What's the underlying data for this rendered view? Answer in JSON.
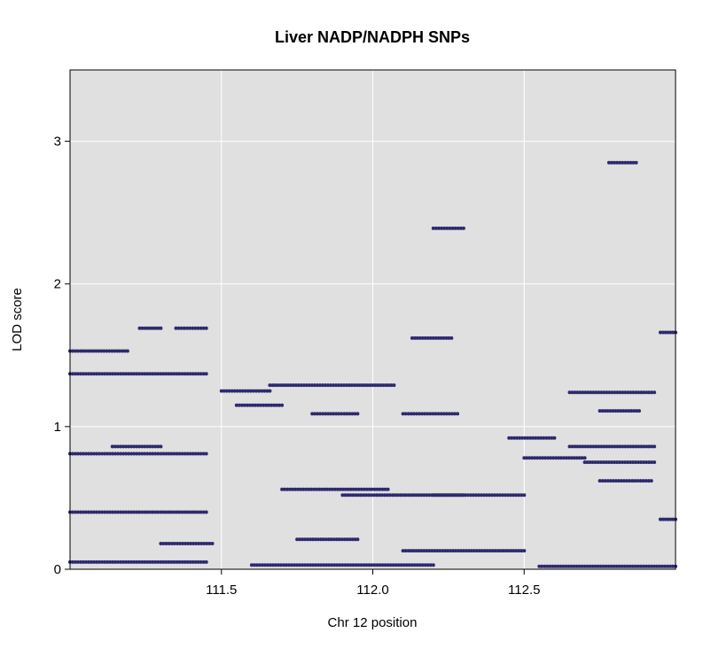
{
  "chart_data": {
    "type": "scatter",
    "title": "Liver NADP/NADPH SNPs",
    "xlabel": "Chr 12 position",
    "ylabel": "LOD score",
    "xlim": [
      111.0,
      113.0
    ],
    "ylim": [
      0,
      3.5
    ],
    "x_ticks": [
      111.5,
      112.0,
      112.5
    ],
    "x_tick_labels": [
      "111.5",
      "112.0",
      "112.5"
    ],
    "y_ticks": [
      0,
      1,
      2,
      3
    ],
    "y_tick_labels": [
      "0",
      "1",
      "2",
      "3"
    ],
    "grid": true,
    "background_color": "#e0e0e0",
    "grid_color": "#ffffff",
    "point_color": "#2e2a6e",
    "segments": [
      {
        "x": [
          111.0,
          111.19
        ],
        "y": 1.53
      },
      {
        "x": [
          111.0,
          111.45
        ],
        "y": 1.37
      },
      {
        "x": [
          111.0,
          111.45
        ],
        "y": 0.81
      },
      {
        "x": [
          111.0,
          111.45
        ],
        "y": 0.4
      },
      {
        "x": [
          111.0,
          111.45
        ],
        "y": 0.05
      },
      {
        "x": [
          111.14,
          111.3
        ],
        "y": 0.86
      },
      {
        "x": [
          111.23,
          111.3
        ],
        "y": 1.69
      },
      {
        "x": [
          111.35,
          111.45
        ],
        "y": 1.69
      },
      {
        "x": [
          111.3,
          111.47
        ],
        "y": 0.18
      },
      {
        "x": [
          111.5,
          111.66
        ],
        "y": 1.25
      },
      {
        "x": [
          111.55,
          111.7
        ],
        "y": 1.15
      },
      {
        "x": [
          111.66,
          112.07
        ],
        "y": 1.29
      },
      {
        "x": [
          111.8,
          111.95
        ],
        "y": 1.09
      },
      {
        "x": [
          112.13,
          112.26
        ],
        "y": 1.62
      },
      {
        "x": [
          112.1,
          112.28
        ],
        "y": 1.09
      },
      {
        "x": [
          112.2,
          112.3
        ],
        "y": 2.39
      },
      {
        "x": [
          111.7,
          112.05
        ],
        "y": 0.56
      },
      {
        "x": [
          111.75,
          111.95
        ],
        "y": 0.21
      },
      {
        "x": [
          111.9,
          112.3
        ],
        "y": 0.52
      },
      {
        "x": [
          112.1,
          112.5
        ],
        "y": 0.13
      },
      {
        "x": [
          111.6,
          112.2
        ],
        "y": 0.03
      },
      {
        "x": [
          112.2,
          112.5
        ],
        "y": 0.52
      },
      {
        "x": [
          112.45,
          112.6
        ],
        "y": 0.92
      },
      {
        "x": [
          112.5,
          112.7
        ],
        "y": 0.78
      },
      {
        "x": [
          112.65,
          112.93
        ],
        "y": 1.24
      },
      {
        "x": [
          112.65,
          112.93
        ],
        "y": 0.86
      },
      {
        "x": [
          112.7,
          112.93
        ],
        "y": 0.75
      },
      {
        "x": [
          112.75,
          112.92
        ],
        "y": 0.62
      },
      {
        "x": [
          112.75,
          112.88
        ],
        "y": 1.11
      },
      {
        "x": [
          112.78,
          112.87
        ],
        "y": 2.85
      },
      {
        "x": [
          112.55,
          113.0
        ],
        "y": 0.02
      },
      {
        "x": [
          112.95,
          113.0
        ],
        "y": 1.66
      },
      {
        "x": [
          112.95,
          113.0
        ],
        "y": 0.35
      }
    ]
  }
}
